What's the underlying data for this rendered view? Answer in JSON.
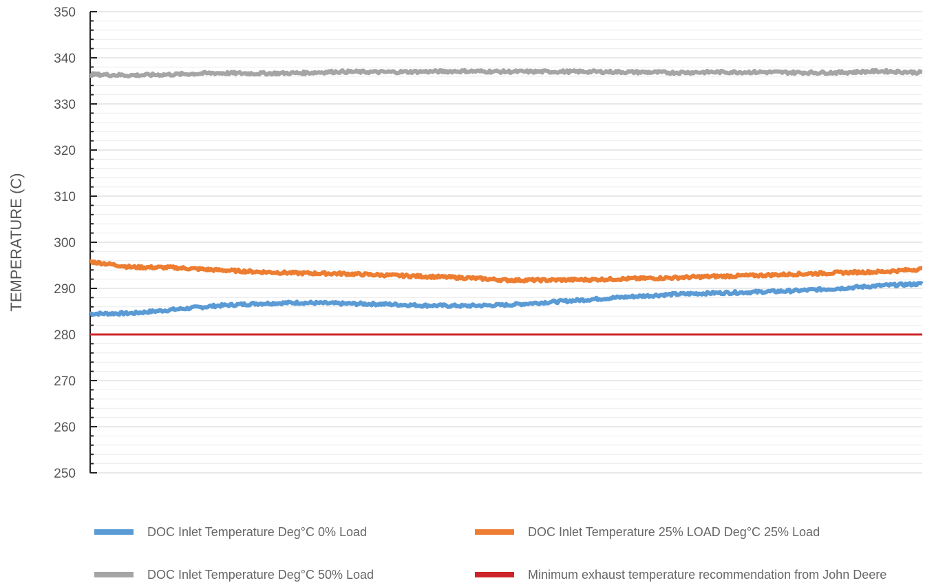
{
  "chart_data": {
    "type": "line",
    "title": "",
    "xlabel": "",
    "ylabel": "TEMPERATURE (C)",
    "ylim": [
      250,
      350
    ],
    "major_step": 10,
    "minor_step": 2,
    "yticks": [
      "250",
      "260",
      "270",
      "280",
      "290",
      "300",
      "310",
      "320",
      "330",
      "340",
      "350"
    ],
    "grid": true,
    "legend_position": "bottom",
    "x_index_range": [
      0,
      100
    ],
    "series": [
      {
        "name": "DOC Inlet Temperature Deg°C 0% Load",
        "color": "#5b9bd5",
        "x": [
          0,
          5,
          10,
          15,
          20,
          25,
          30,
          35,
          40,
          45,
          50,
          55,
          60,
          65,
          70,
          75,
          80,
          85,
          90,
          95,
          100
        ],
        "values": [
          284.5,
          284.6,
          285.4,
          286.2,
          286.7,
          286.9,
          286.7,
          286.6,
          286.3,
          286.2,
          286.4,
          287.0,
          287.6,
          288.2,
          288.7,
          289.0,
          289.2,
          289.5,
          290.0,
          290.6,
          291.0
        ]
      },
      {
        "name": "DOC Inlet Temperature 25% LOAD Deg°C 25% Load",
        "color": "#ed7d31",
        "x": [
          0,
          5,
          10,
          15,
          20,
          25,
          30,
          35,
          40,
          45,
          50,
          55,
          60,
          65,
          70,
          75,
          80,
          85,
          90,
          95,
          100
        ],
        "values": [
          295.8,
          294.6,
          294.5,
          294.0,
          293.6,
          293.3,
          293.2,
          292.9,
          292.6,
          292.3,
          291.8,
          291.8,
          291.9,
          292.1,
          292.3,
          292.6,
          292.8,
          293.1,
          293.4,
          293.6,
          294.2
        ]
      },
      {
        "name": "DOC Inlet Temperature Deg°C 50% Load",
        "color": "#a5a5a5",
        "x": [
          0,
          5,
          10,
          15,
          20,
          25,
          30,
          35,
          40,
          45,
          50,
          55,
          60,
          65,
          70,
          75,
          80,
          85,
          90,
          95,
          100
        ],
        "values": [
          336.4,
          336.2,
          336.4,
          336.7,
          336.6,
          336.7,
          337.0,
          336.9,
          337.0,
          337.1,
          337.0,
          337.0,
          337.0,
          336.9,
          336.8,
          336.9,
          336.9,
          336.8,
          336.8,
          337.1,
          336.8
        ]
      },
      {
        "name": "Minimum exhaust temperature recommendation from John Deere",
        "color": "#cc2529",
        "x": [
          0,
          100
        ],
        "values": [
          280,
          280
        ]
      }
    ]
  }
}
